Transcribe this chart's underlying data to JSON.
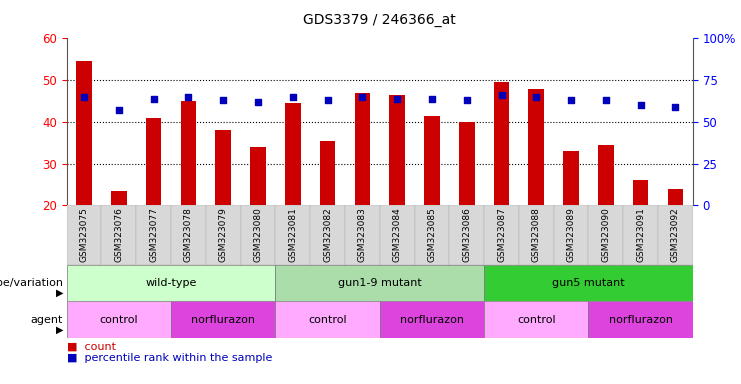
{
  "title": "GDS3379 / 246366_at",
  "samples": [
    "GSM323075",
    "GSM323076",
    "GSM323077",
    "GSM323078",
    "GSM323079",
    "GSM323080",
    "GSM323081",
    "GSM323082",
    "GSM323083",
    "GSM323084",
    "GSM323085",
    "GSM323086",
    "GSM323087",
    "GSM323088",
    "GSM323089",
    "GSM323090",
    "GSM323091",
    "GSM323092"
  ],
  "counts": [
    54.5,
    23.5,
    41.0,
    45.0,
    38.0,
    34.0,
    44.5,
    35.5,
    47.0,
    46.5,
    41.5,
    40.0,
    49.5,
    48.0,
    33.0,
    34.5,
    26.0,
    24.0
  ],
  "percentiles_right": [
    65,
    57,
    64,
    65,
    63,
    62,
    65,
    63,
    65,
    64,
    64,
    63,
    66,
    65,
    63,
    63,
    60,
    59
  ],
  "ylim_left": [
    20,
    60
  ],
  "ylim_right": [
    0,
    100
  ],
  "yticks_left": [
    20,
    30,
    40,
    50,
    60
  ],
  "yticks_right": [
    0,
    25,
    50,
    75,
    100
  ],
  "ytick_labels_right": [
    "0",
    "25",
    "50",
    "75",
    "100%"
  ],
  "bar_color": "#cc0000",
  "dot_color": "#0000bb",
  "bar_bottom": 20,
  "genotype_groups": [
    {
      "label": "wild-type",
      "start": 0,
      "end": 6,
      "color": "#ccffcc"
    },
    {
      "label": "gun1-9 mutant",
      "start": 6,
      "end": 12,
      "color": "#aaddaa"
    },
    {
      "label": "gun5 mutant",
      "start": 12,
      "end": 18,
      "color": "#33cc33"
    }
  ],
  "agent_groups": [
    {
      "label": "control",
      "start": 0,
      "end": 3,
      "color": "#ffaaff"
    },
    {
      "label": "norflurazon",
      "start": 3,
      "end": 6,
      "color": "#dd44dd"
    },
    {
      "label": "control",
      "start": 6,
      "end": 9,
      "color": "#ffaaff"
    },
    {
      "label": "norflurazon",
      "start": 9,
      "end": 12,
      "color": "#dd44dd"
    },
    {
      "label": "control",
      "start": 12,
      "end": 15,
      "color": "#ffaaff"
    },
    {
      "label": "norflurazon",
      "start": 15,
      "end": 18,
      "color": "#dd44dd"
    }
  ],
  "legend_count_color": "#cc0000",
  "legend_dot_color": "#0000bb",
  "xlabel_genotype": "genotype/variation",
  "xlabel_agent": "agent",
  "legend_count_label": "count",
  "legend_percentile_label": "percentile rank within the sample",
  "plot_bg_color": "#ffffff",
  "sample_label_bg": "#dddddd"
}
